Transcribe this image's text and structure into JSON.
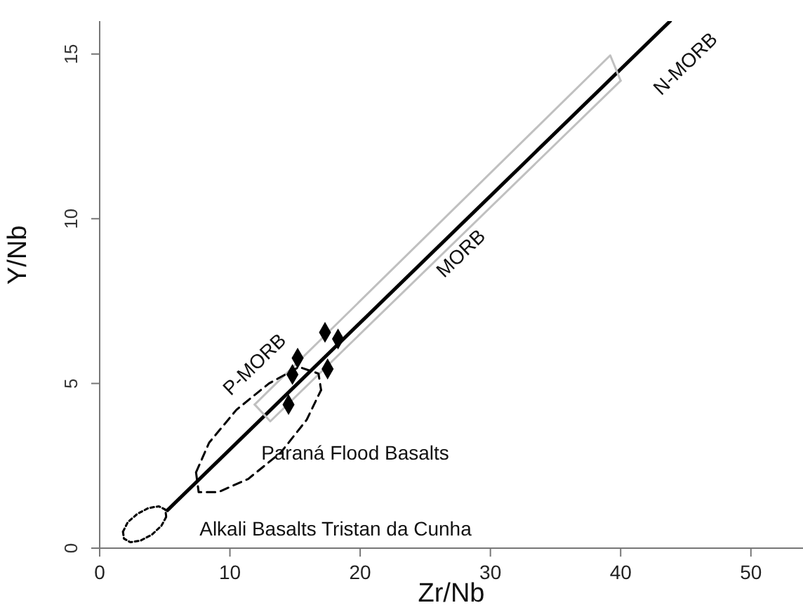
{
  "chart_data": {
    "type": "scatter",
    "xlabel": "Zr/Nb",
    "ylabel": "Y/Nb",
    "xlim": [
      0,
      54
    ],
    "ylim": [
      0,
      16
    ],
    "xticks": [
      0,
      10,
      20,
      30,
      40,
      50
    ],
    "yticks": [
      0,
      5,
      10,
      15
    ],
    "series": [
      {
        "color": "#000000",
        "marker": "diamond",
        "x": [
          17.3,
          18.3,
          15.2,
          14.8,
          17.5,
          14.5
        ],
        "values": [
          6.55,
          6.35,
          5.77,
          5.27,
          5.44,
          4.36
        ]
      },
      {
        "type": "line",
        "color": "#000000",
        "marker": "none",
        "line_style": "solid",
        "x": [
          5.2,
          43.8
        ],
        "values": [
          1.15,
          16
        ]
      },
      {
        "type": "line",
        "color": "#c0c0c0",
        "marker": "none",
        "line_style": "solid",
        "x": [
          11.9,
          39.2,
          40.0
        ],
        "values": [
          4.36,
          14.96,
          14.19
        ]
      },
      {
        "type": "line",
        "color": "#c0c0c0",
        "marker": "none",
        "line_style": "solid",
        "x": [
          11.9,
          13.1,
          40.0
        ],
        "values": [
          4.36,
          3.85,
          14.19
        ]
      },
      {
        "type": "line",
        "color": "#000000",
        "marker": "none",
        "line_style": "dashed",
        "x": [
          7.4,
          8.4,
          10.5,
          13.0,
          15.3,
          16.8,
          17.0
        ],
        "values": [
          2.3,
          3.2,
          4.2,
          5.0,
          5.5,
          5.3,
          4.8
        ]
      },
      {
        "type": "line",
        "color": "#000000",
        "marker": "none",
        "line_style": "dashed",
        "x": [
          7.4,
          7.6,
          9.1,
          11.4,
          13.9,
          15.9,
          17.0
        ],
        "values": [
          2.3,
          1.7,
          1.7,
          2.1,
          2.9,
          3.9,
          4.8
        ]
      },
      {
        "type": "line",
        "color": "#000000",
        "marker": "none",
        "line_style": "dotted",
        "x": [
          1.79,
          2.16,
          2.89,
          3.76,
          4.55,
          5.04,
          5.11
        ],
        "values": [
          0.5,
          0.79,
          1.04,
          1.22,
          1.27,
          1.17,
          0.95
        ]
      },
      {
        "type": "line",
        "color": "#000000",
        "marker": "none",
        "line_style": "dotted",
        "x": [
          1.79,
          1.86,
          2.35,
          3.14,
          4.01,
          4.74,
          5.11
        ],
        "values": [
          0.5,
          0.29,
          0.18,
          0.23,
          0.41,
          0.68,
          0.95
        ]
      }
    ],
    "annotations": [
      "P-MORB",
      "MORB",
      "N-MORB",
      "Paraná Flood Basalts",
      "Alkali Basalts Tristan da Cunha"
    ]
  }
}
